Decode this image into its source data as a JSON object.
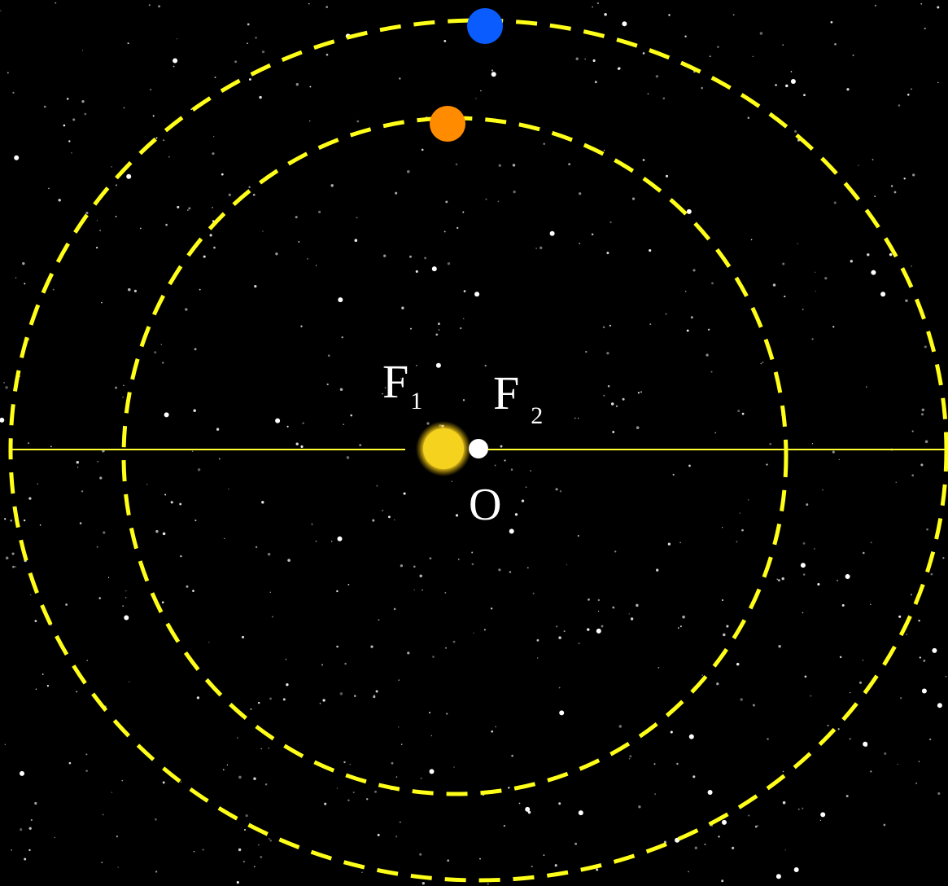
{
  "labels": {
    "f1": {
      "letter": "F",
      "subscript": "1"
    },
    "f2": {
      "letter": "F",
      "subscript": "2"
    },
    "center": "O"
  }
}
